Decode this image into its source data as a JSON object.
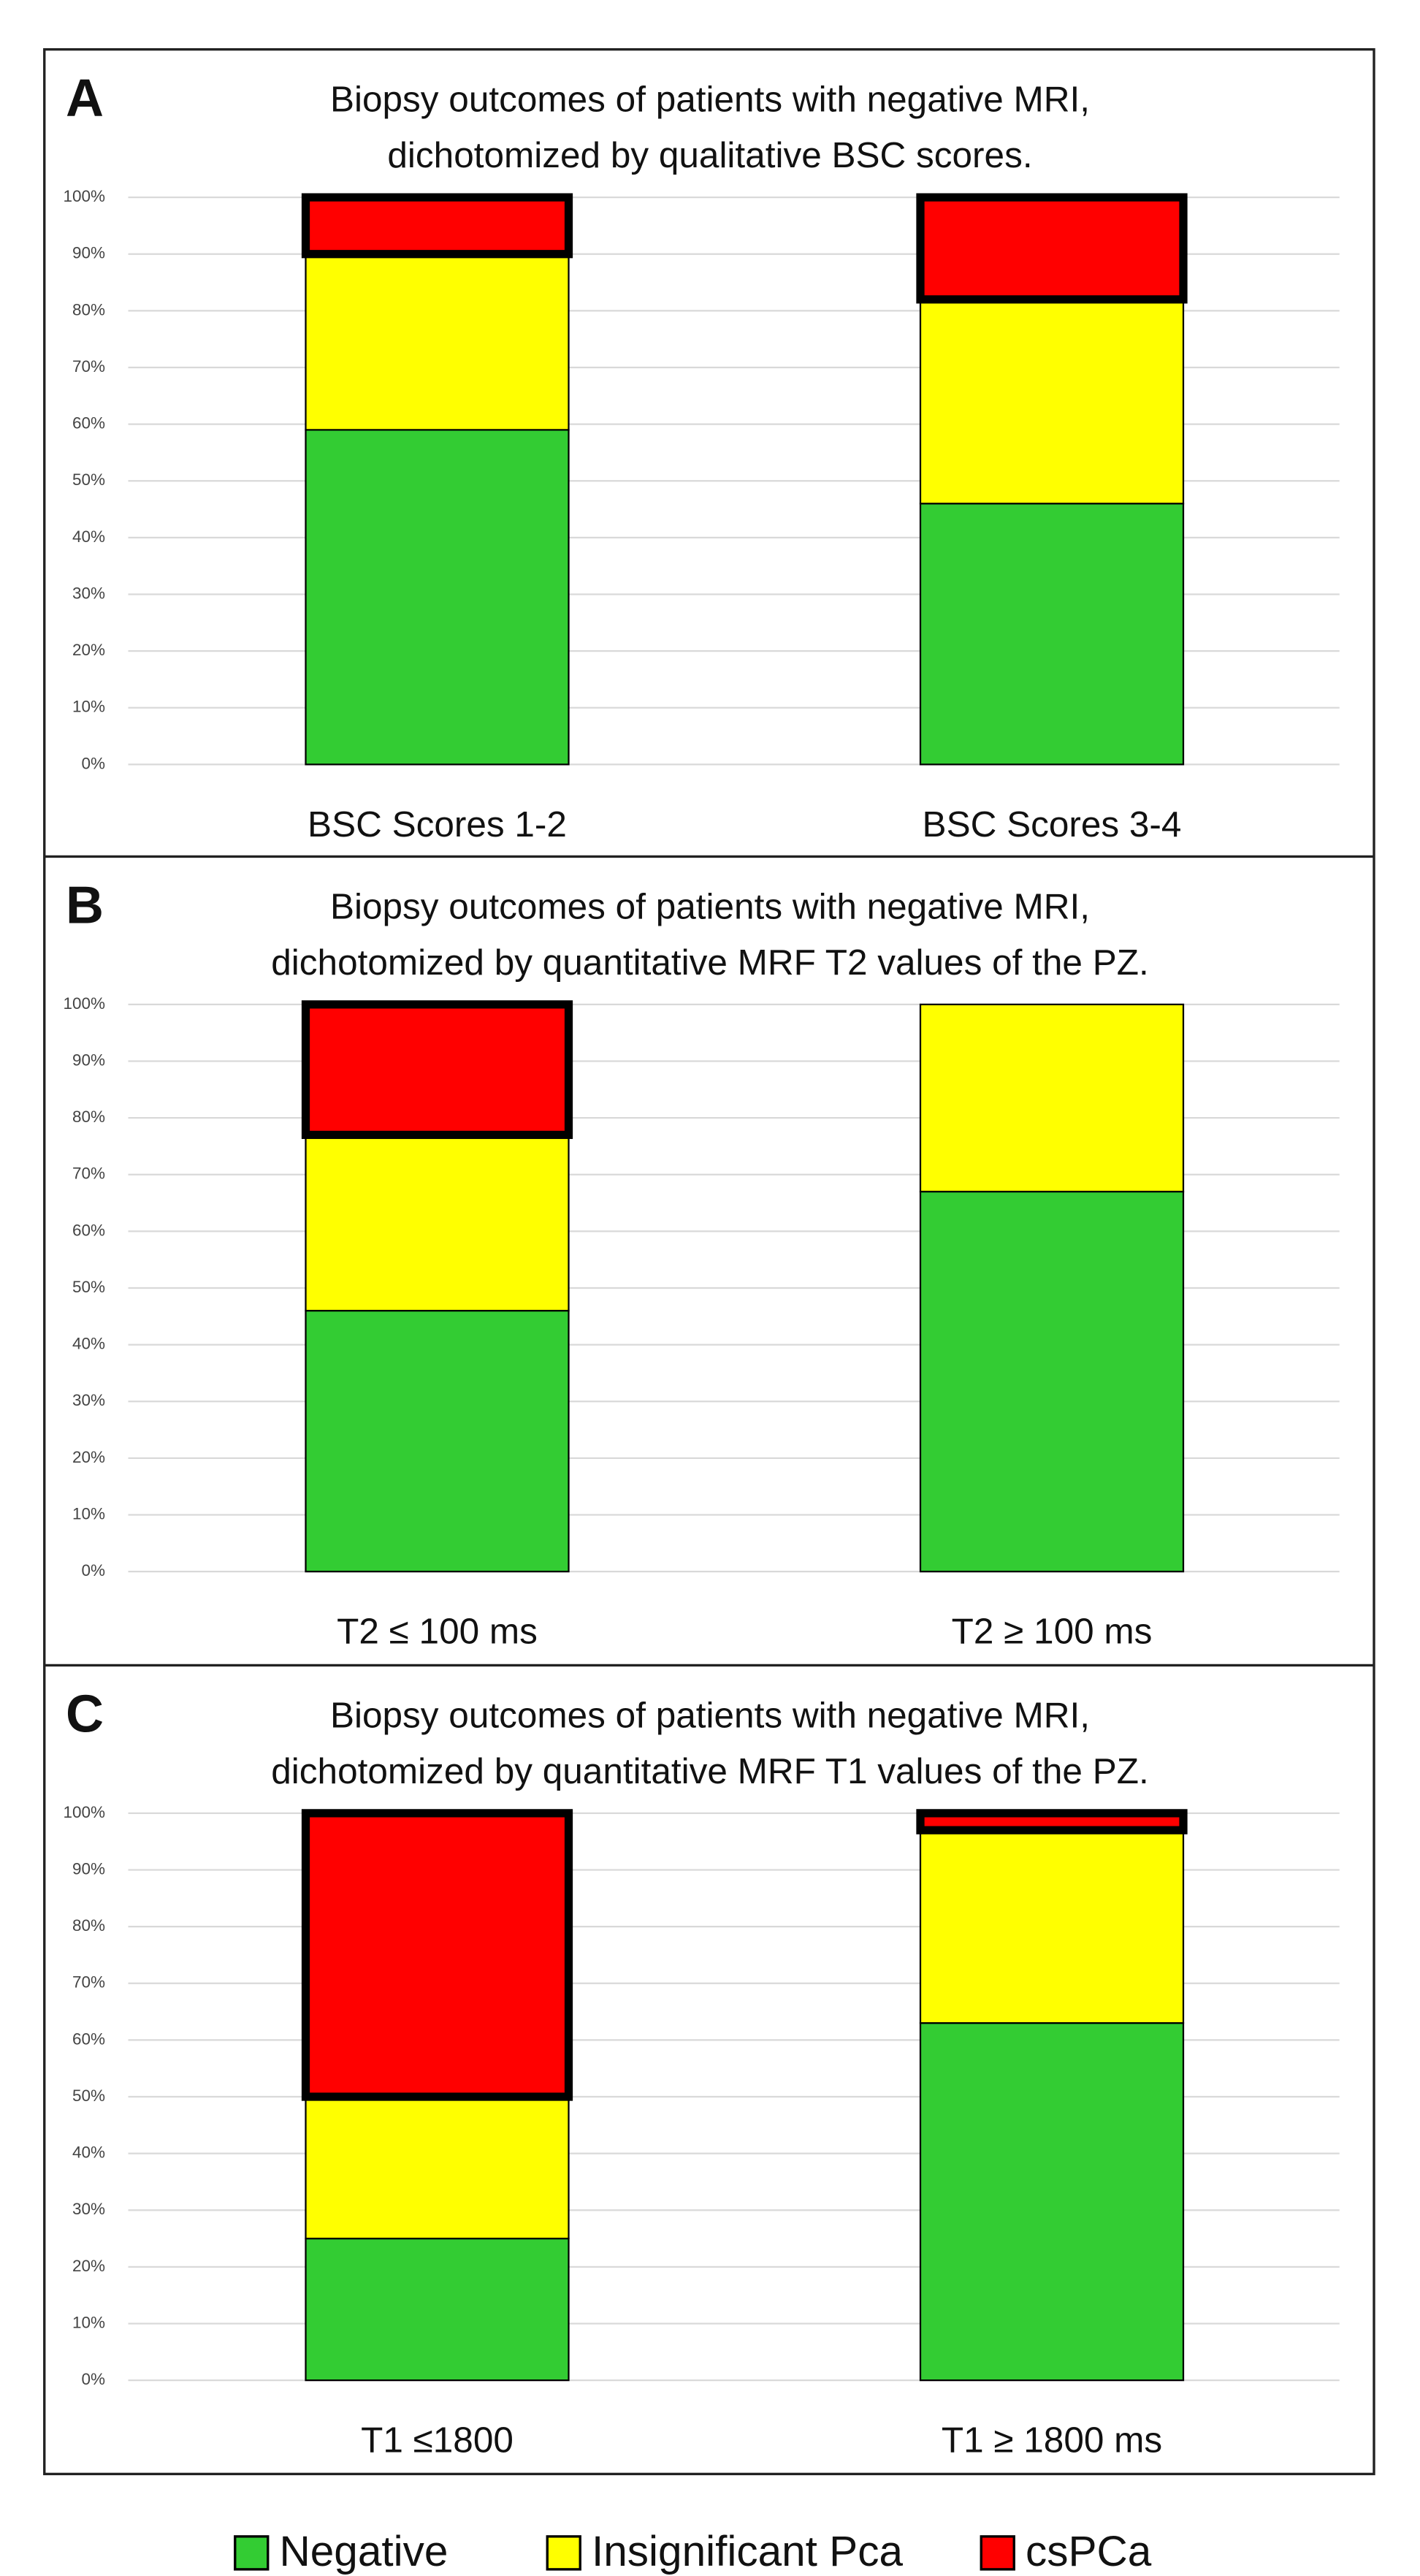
{
  "chart_data": [
    {
      "type": "bar",
      "stacked": true,
      "panel": "A",
      "title": [
        "Biopsy outcomes of patients with negative MRI,",
        "dichotomized by qualitative BSC scores."
      ],
      "categories": [
        "BSC Scores 1-2",
        "BSC Scores 3-4"
      ],
      "series": [
        {
          "name": "Negative",
          "color": "#33cc33",
          "values": [
            59,
            46
          ]
        },
        {
          "name": "Insignificant Pca",
          "color": "#ffff00",
          "values": [
            31,
            36
          ]
        },
        {
          "name": "csPCa",
          "color": "#ff0000",
          "values": [
            10,
            18
          ]
        }
      ],
      "ylim": [
        0,
        100
      ],
      "yticks": [
        {
          "value": 0,
          "label": "0%"
        },
        {
          "value": 10,
          "label": "10%"
        },
        {
          "value": 20,
          "label": "20%"
        },
        {
          "value": 30,
          "label": "30%"
        },
        {
          "value": 40,
          "label": "40%"
        },
        {
          "value": 50,
          "label": "50%"
        },
        {
          "value": 60,
          "label": "60%"
        },
        {
          "value": 70,
          "label": "70%"
        },
        {
          "value": 80,
          "label": "80%"
        },
        {
          "value": 90,
          "label": "90%"
        },
        {
          "value": 100,
          "label": "100%"
        }
      ],
      "grid": true
    },
    {
      "type": "bar",
      "stacked": true,
      "panel": "B",
      "title": [
        "Biopsy outcomes of patients with negative MRI,",
        "dichotomized by quantitative MRF T2 values of the PZ."
      ],
      "categories": [
        "T2 ≤ 100 ms",
        "T2 ≥ 100 ms"
      ],
      "series": [
        {
          "name": "Negative",
          "color": "#33cc33",
          "values": [
            46,
            67
          ]
        },
        {
          "name": "Insignificant Pca",
          "color": "#ffff00",
          "values": [
            31,
            33
          ]
        },
        {
          "name": "csPCa",
          "color": "#ff0000",
          "values": [
            23,
            0
          ]
        }
      ],
      "ylim": [
        0,
        100
      ],
      "yticks": [
        {
          "value": 0,
          "label": "0%"
        },
        {
          "value": 10,
          "label": "10%"
        },
        {
          "value": 20,
          "label": "20%"
        },
        {
          "value": 30,
          "label": "30%"
        },
        {
          "value": 40,
          "label": "40%"
        },
        {
          "value": 50,
          "label": "50%"
        },
        {
          "value": 60,
          "label": "60%"
        },
        {
          "value": 70,
          "label": "70%"
        },
        {
          "value": 80,
          "label": "80%"
        },
        {
          "value": 90,
          "label": "90%"
        },
        {
          "value": 100,
          "label": "100%"
        }
      ],
      "grid": true
    },
    {
      "type": "bar",
      "stacked": true,
      "panel": "C",
      "title": [
        "Biopsy outcomes of patients with negative MRI,",
        "dichotomized by quantitative MRF T1 values of the PZ."
      ],
      "categories": [
        "T1 ≤1800",
        "T1 ≥ 1800 ms"
      ],
      "series": [
        {
          "name": "Negative",
          "color": "#33cc33",
          "values": [
            25,
            63
          ]
        },
        {
          "name": "Insignificant Pca",
          "color": "#ffff00",
          "values": [
            25,
            34
          ]
        },
        {
          "name": "csPCa",
          "color": "#ff0000",
          "values": [
            50,
            3
          ]
        }
      ],
      "ylim": [
        0,
        100
      ],
      "yticks": [
        {
          "value": 0,
          "label": "0%"
        },
        {
          "value": 10,
          "label": "10%"
        },
        {
          "value": 20,
          "label": "20%"
        },
        {
          "value": 30,
          "label": "30%"
        },
        {
          "value": 40,
          "label": "40%"
        },
        {
          "value": 50,
          "label": "50%"
        },
        {
          "value": 60,
          "label": "60%"
        },
        {
          "value": 70,
          "label": "70%"
        },
        {
          "value": 80,
          "label": "80%"
        },
        {
          "value": 90,
          "label": "90%"
        },
        {
          "value": 100,
          "label": "100%"
        }
      ],
      "grid": true
    }
  ]
}
